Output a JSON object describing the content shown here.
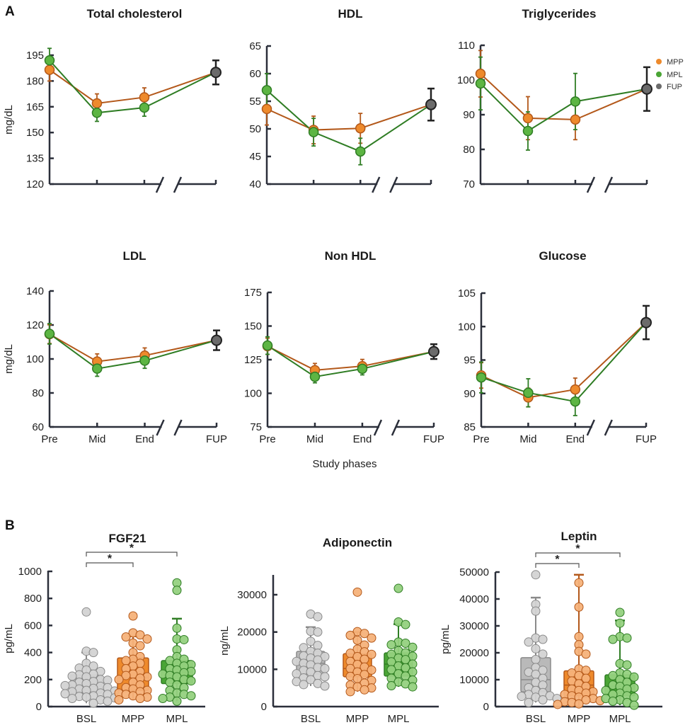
{
  "figure": {
    "panel_a_letter": "A",
    "panel_b_letter": "B",
    "shared_xlabel": "Study phases",
    "legend": [
      {
        "label": "MPP",
        "color": "#ee8a2c"
      },
      {
        "label": "MPL",
        "color": "#4aa535"
      },
      {
        "label": "FUP",
        "color": "#6b6b6b"
      }
    ],
    "colors": {
      "MPP_marker": "#ee8a2c",
      "MPP_line": "#b3581a",
      "MPL_marker": "#5db543",
      "MPL_line": "#2f7d24",
      "FUP_marker": "#6b6b6b",
      "FUP_line": "#222222",
      "BSL_box": "#b9b9b9",
      "BSL_point": "#d3d3d3",
      "BSL_edge": "#8a8a8a",
      "MPP_box": "#ee8a2c",
      "MPP_point": "#f5b27a",
      "MPP_edge": "#b3581a",
      "MPL_box": "#4aa535",
      "MPL_point": "#95d17f",
      "MPL_edge": "#2f7d24",
      "axis": "#2b2f3a"
    }
  },
  "chart_data": [
    {
      "type": "line",
      "panel": "A",
      "title": "Total cholesterol",
      "xlabel": "",
      "ylabel": "mg/dL",
      "categories": [
        "Pre",
        "Mid",
        "End",
        "FUP"
      ],
      "show_xtick_labels": false,
      "yticks": [
        120,
        135,
        150,
        165,
        180,
        195
      ],
      "ylim": [
        120,
        195
      ],
      "series": [
        {
          "name": "MPP",
          "values": [
            186.5,
            167,
            170.5,
            185
          ],
          "err": [
            6.5,
            5.5,
            5.5,
            0
          ]
        },
        {
          "name": "MPL",
          "values": [
            192,
            161.5,
            164.5,
            185
          ],
          "err": [
            7,
            5,
            5,
            0
          ]
        },
        {
          "name": "FUP",
          "values": [
            null,
            null,
            null,
            185
          ],
          "err": [
            0,
            0,
            0,
            7
          ]
        }
      ]
    },
    {
      "type": "line",
      "panel": "A",
      "title": "HDL",
      "xlabel": "",
      "ylabel": "",
      "categories": [
        "Pre",
        "Mid",
        "End",
        "FUP"
      ],
      "show_xtick_labels": false,
      "yticks": [
        40,
        45,
        50,
        55,
        60,
        65
      ],
      "ylim": [
        40,
        65
      ],
      "series": [
        {
          "name": "MPP",
          "values": [
            53.6,
            49.8,
            50.1,
            54.4
          ],
          "err": [
            2.9,
            2.5,
            2.7,
            0
          ]
        },
        {
          "name": "MPL",
          "values": [
            57,
            49.4,
            45.9,
            54.4
          ],
          "err": [
            3,
            2.5,
            2.4,
            0
          ]
        },
        {
          "name": "FUP",
          "values": [
            null,
            null,
            null,
            54.4
          ],
          "err": [
            0,
            0,
            0,
            2.9
          ]
        }
      ]
    },
    {
      "type": "line",
      "panel": "A",
      "title": "Triglycerides",
      "xlabel": "",
      "ylabel": "",
      "categories": [
        "Pre",
        "Mid",
        "End",
        "FUP"
      ],
      "show_xtick_labels": false,
      "yticks": [
        70,
        80,
        90,
        100,
        110
      ],
      "ylim": [
        70,
        110
      ],
      "series": [
        {
          "name": "MPP",
          "values": [
            101.8,
            89,
            88.6,
            97.4
          ],
          "err": [
            6.7,
            6.2,
            5.8,
            0
          ]
        },
        {
          "name": "MPL",
          "values": [
            99,
            85.3,
            93.8,
            97.4
          ],
          "err": [
            7.6,
            5.5,
            8.1,
            0
          ]
        },
        {
          "name": "FUP",
          "values": [
            null,
            null,
            null,
            97.4
          ],
          "err": [
            0,
            0,
            0,
            6.3
          ]
        }
      ]
    },
    {
      "type": "line",
      "panel": "A",
      "title": "LDL",
      "xlabel": "",
      "ylabel": "mg/dL",
      "categories": [
        "Pre",
        "Mid",
        "End",
        "FUP"
      ],
      "show_xtick_labels": true,
      "yticks": [
        60,
        80,
        100,
        120,
        140
      ],
      "ylim": [
        60,
        140
      ],
      "series": [
        {
          "name": "MPP",
          "values": [
            114.6,
            98.5,
            102,
            111
          ],
          "err": [
            5.5,
            4.5,
            4.5,
            0
          ]
        },
        {
          "name": "MPL",
          "values": [
            114.8,
            94.3,
            99,
            111
          ],
          "err": [
            6,
            4.5,
            4.5,
            0
          ]
        },
        {
          "name": "FUP",
          "values": [
            null,
            null,
            null,
            111
          ],
          "err": [
            0,
            0,
            0,
            5.8
          ]
        }
      ]
    },
    {
      "type": "line",
      "panel": "A",
      "title": "Non HDL",
      "xlabel": "Study phases",
      "ylabel": "",
      "categories": [
        "Pre",
        "Mid",
        "End",
        "FUP"
      ],
      "show_xtick_labels": true,
      "yticks": [
        75,
        100,
        125,
        150,
        175
      ],
      "ylim": [
        75,
        175
      ],
      "series": [
        {
          "name": "MPP",
          "values": [
            135,
            117.2,
            120.2,
            131
          ],
          "err": [
            6,
            5,
            5,
            0
          ]
        },
        {
          "name": "MPL",
          "values": [
            135.5,
            112.3,
            118.2,
            131
          ],
          "err": [
            6.5,
            4.5,
            4.5,
            0
          ]
        },
        {
          "name": "FUP",
          "values": [
            null,
            null,
            null,
            131
          ],
          "err": [
            0,
            0,
            0,
            5.5
          ]
        }
      ]
    },
    {
      "type": "line",
      "panel": "A",
      "title": "Glucose",
      "xlabel": "",
      "ylabel": "",
      "categories": [
        "Pre",
        "Mid",
        "End",
        "FUP"
      ],
      "show_xtick_labels": true,
      "yticks": [
        85,
        90,
        95,
        100,
        105
      ],
      "ylim": [
        85,
        105
      ],
      "series": [
        {
          "name": "MPP",
          "values": [
            92.7,
            89.4,
            90.6,
            100.6
          ],
          "err": [
            1.9,
            1.4,
            1.7,
            0
          ]
        },
        {
          "name": "MPL",
          "values": [
            92.4,
            90.1,
            88.8,
            100.6
          ],
          "err": [
            2.3,
            2.1,
            2.1,
            0
          ]
        },
        {
          "name": "FUP",
          "values": [
            null,
            null,
            null,
            100.6
          ],
          "err": [
            0,
            0,
            0,
            2.5
          ]
        }
      ]
    },
    {
      "type": "box",
      "panel": "B",
      "title": "FGF21",
      "ylabel": "pg/mL",
      "categories": [
        "BSL",
        "MPP",
        "MPL"
      ],
      "yticks": [
        0,
        200,
        400,
        600,
        800,
        1000
      ],
      "ylim": [
        0,
        1000
      ],
      "significance": [
        {
          "from": "BSL",
          "to": "MPP",
          "label": "*"
        },
        {
          "from": "BSL",
          "to": "MPL",
          "label": "*"
        }
      ],
      "boxes": [
        {
          "name": "BSL",
          "q1": 100,
          "median": 150,
          "q3": 235,
          "whisker_low": 25,
          "whisker_high": 400,
          "points": [
            700,
            410,
            400,
            320,
            300,
            285,
            270,
            260,
            240,
            235,
            225,
            220,
            200,
            195,
            185,
            180,
            170,
            160,
            155,
            150,
            140,
            135,
            130,
            120,
            115,
            110,
            100,
            95,
            90,
            80,
            75,
            70,
            65,
            60,
            50,
            40,
            25
          ]
        },
        {
          "name": "MPP",
          "q1": 120,
          "median": 215,
          "q3": 360,
          "whisker_low": 50,
          "whisker_high": 520,
          "points": [
            670,
            545,
            530,
            515,
            500,
            470,
            450,
            400,
            370,
            350,
            340,
            320,
            300,
            280,
            260,
            240,
            230,
            220,
            210,
            200,
            180,
            160,
            140,
            130,
            120,
            110,
            100,
            90,
            80,
            70,
            60,
            50
          ]
        },
        {
          "name": "MPL",
          "q1": 170,
          "median": 255,
          "q3": 340,
          "whisker_low": 40,
          "whisker_high": 650,
          "points": [
            915,
            860,
            580,
            500,
            495,
            420,
            370,
            350,
            340,
            320,
            310,
            300,
            280,
            270,
            260,
            250,
            240,
            230,
            220,
            200,
            190,
            180,
            160,
            140,
            120,
            100,
            90,
            80,
            70,
            60,
            40
          ]
        }
      ]
    },
    {
      "type": "box",
      "panel": "B",
      "title": "Adiponectin",
      "ylabel": "ng/mL",
      "categories": [
        "BSL",
        "MPP",
        "MPL"
      ],
      "yticks": [
        0,
        10000,
        20000,
        30000
      ],
      "ylim": [
        0,
        32000
      ],
      "significance": [],
      "boxes": [
        {
          "name": "BSL",
          "q1": 8700,
          "median": 11600,
          "q3": 14800,
          "whisker_low": 5500,
          "whisker_high": 21300,
          "points": [
            24800,
            24100,
            20200,
            20000,
            17500,
            16400,
            15800,
            14800,
            14300,
            13600,
            13400,
            13000,
            12500,
            12100,
            11600,
            11200,
            10500,
            10200,
            9700,
            9300,
            8800,
            8300,
            8000,
            7700,
            7200,
            6700,
            6200,
            5900,
            5500
          ]
        },
        {
          "name": "MPP",
          "q1": 8000,
          "median": 10200,
          "q3": 14200,
          "whisker_low": 4000,
          "whisker_high": 20000,
          "points": [
            30700,
            20100,
            19600,
            19100,
            18400,
            17800,
            16500,
            15400,
            14700,
            14300,
            14000,
            13400,
            12700,
            12100,
            11300,
            10600,
            10200,
            9800,
            9300,
            8600,
            8100,
            7500,
            7000,
            6300,
            5800,
            5300,
            5000,
            4500,
            4000
          ]
        },
        {
          "name": "MPL",
          "q1": 8200,
          "median": 11400,
          "q3": 14400,
          "whisker_low": 5300,
          "whisker_high": 22100,
          "points": [
            31700,
            22700,
            22000,
            17300,
            17000,
            16600,
            15900,
            15000,
            14400,
            14000,
            13500,
            13000,
            12600,
            12000,
            11400,
            10900,
            10400,
            9900,
            9300,
            8800,
            8200,
            7600,
            7100,
            6600,
            6100,
            5600,
            5300
          ]
        }
      ]
    },
    {
      "type": "box",
      "panel": "B",
      "title": "Leptin",
      "ylabel": "pg/mL",
      "categories": [
        "BSL",
        "MPP",
        "MPL"
      ],
      "yticks": [
        0,
        10000,
        20000,
        30000,
        40000,
        50000
      ],
      "ylim": [
        0,
        50000
      ],
      "significance": [
        {
          "from": "BSL",
          "to": "MPP",
          "label": "*"
        },
        {
          "from": "BSL",
          "to": "MPL",
          "label": "*"
        }
      ],
      "boxes": [
        {
          "name": "BSL",
          "q1": 5500,
          "median": 10000,
          "q3": 18200,
          "whisker_low": 1500,
          "whisker_high": 40500,
          "points": [
            49000,
            38000,
            35500,
            25500,
            25000,
            24000,
            21500,
            19500,
            17500,
            14500,
            13500,
            12800,
            12000,
            10500,
            9000,
            8000,
            7000,
            6000,
            5200,
            4500,
            4000,
            3800,
            3500,
            3000,
            2500,
            1500
          ]
        },
        {
          "name": "MPP",
          "q1": 4000,
          "median": 8000,
          "q3": 13300,
          "whisker_low": 500,
          "whisker_high": 49000,
          "points": [
            46000,
            37000,
            26000,
            23000,
            20500,
            19500,
            14000,
            13500,
            12500,
            11500,
            10500,
            9500,
            8500,
            7500,
            6500,
            6000,
            5500,
            5000,
            4500,
            4000,
            3500,
            3000,
            2500,
            2200,
            1800,
            1500,
            1000,
            800
          ]
        },
        {
          "name": "MPL",
          "q1": 4000,
          "median": 7500,
          "q3": 11800,
          "whisker_low": 500,
          "whisker_high": 32000,
          "points": [
            35000,
            31000,
            26000,
            25500,
            25000,
            16000,
            15500,
            12500,
            12000,
            11500,
            11000,
            10000,
            9000,
            8000,
            7500,
            7000,
            6500,
            6000,
            5000,
            4500,
            4000,
            3500,
            3000,
            2500,
            2000,
            1500,
            500
          ]
        }
      ]
    }
  ]
}
